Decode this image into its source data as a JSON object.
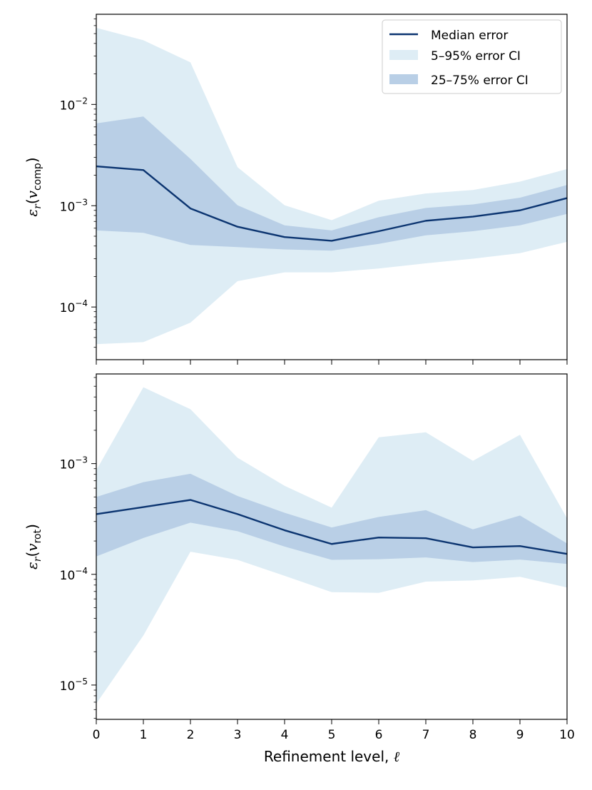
{
  "colors": {
    "median": "#0b3470",
    "ci_outer": "#deedf5",
    "ci_inner": "#b9cfe6"
  },
  "legend": {
    "median_label": "Median error",
    "outer_label": "5–95% error CI",
    "inner_label": "25–75% error CI"
  },
  "chart_data": [
    {
      "type": "area",
      "ylabel": {
        "prefix": "ε",
        "sub1": "r",
        "open": "(",
        "var": "v",
        "sub2": "comp",
        "close": ")"
      },
      "xlabel": "",
      "yscale": "log",
      "xlim": [
        0,
        10
      ],
      "ylim_log10": [
        -4.52,
        -1.11
      ],
      "yticks": [
        {
          "base": "10",
          "exp": "−2",
          "log": -2
        },
        {
          "base": "10",
          "exp": "−3",
          "log": -3
        },
        {
          "base": "10",
          "exp": "−4",
          "log": -4
        }
      ],
      "x": [
        0,
        1,
        2,
        3,
        4,
        5,
        6,
        7,
        8,
        9,
        10
      ],
      "series": [
        {
          "name": "Median error",
          "values": [
            0.00245,
            0.00225,
            0.00094,
            0.00062,
            0.00049,
            0.00045,
            0.00056,
            0.00071,
            0.00078,
            0.0009,
            0.00119
          ]
        },
        {
          "name": "5–95% error CI low",
          "values": [
            4.3e-05,
            4.5e-05,
            7e-05,
            0.00018,
            0.00022,
            0.00022,
            0.00024,
            0.00027,
            0.0003,
            0.00034,
            0.00044
          ]
        },
        {
          "name": "5–95% error CI high",
          "values": [
            0.057,
            0.043,
            0.026,
            0.0024,
            0.00101,
            0.00072,
            0.00112,
            0.00132,
            0.00143,
            0.00173,
            0.0023
          ]
        },
        {
          "name": "25–75% error CI low",
          "values": [
            0.00057,
            0.00054,
            0.00041,
            0.00039,
            0.00037,
            0.00036,
            0.00042,
            0.00051,
            0.00056,
            0.00064,
            0.00083
          ]
        },
        {
          "name": "25–75% error CI high",
          "values": [
            0.0065,
            0.0076,
            0.0029,
            0.00101,
            0.00064,
            0.00057,
            0.00077,
            0.00095,
            0.00103,
            0.0012,
            0.0016
          ]
        }
      ]
    },
    {
      "type": "area",
      "ylabel": {
        "prefix": "ε",
        "sub1": "r",
        "open": "(",
        "var": "v",
        "sub2": "rot",
        "close": ")"
      },
      "xlabel": {
        "text": "Refinement level, ",
        "symbol": "ℓ"
      },
      "yscale": "log",
      "xlim": [
        0,
        10
      ],
      "ylim_log10": [
        -5.31,
        -2.19
      ],
      "yticks": [
        {
          "base": "10",
          "exp": "−3",
          "log": -3
        },
        {
          "base": "10",
          "exp": "−4",
          "log": -4
        },
        {
          "base": "10",
          "exp": "−5",
          "log": -5
        }
      ],
      "xticks": [
        "0",
        "1",
        "2",
        "3",
        "4",
        "5",
        "6",
        "7",
        "8",
        "9",
        "10"
      ],
      "x": [
        0,
        1,
        2,
        3,
        4,
        5,
        6,
        7,
        8,
        9,
        10
      ],
      "series": [
        {
          "name": "Median error",
          "values": [
            0.00035,
            0.000405,
            0.00047,
            0.00035,
            0.00025,
            0.000188,
            0.000215,
            0.000212,
            0.000175,
            0.00018,
            0.000153
          ]
        },
        {
          "name": "5–95% error CI low",
          "values": [
            6.8e-06,
            2.8e-05,
            0.00016,
            0.000135,
            9.7e-05,
            6.9e-05,
            6.8e-05,
            8.6e-05,
            8.8e-05,
            9.5e-05,
            7.6e-05
          ]
        },
        {
          "name": "5–95% error CI high",
          "values": [
            0.00087,
            0.0049,
            0.0031,
            0.00113,
            0.00063,
            0.0004,
            0.00173,
            0.00192,
            0.00106,
            0.00182,
            0.00032
          ]
        },
        {
          "name": "25–75% error CI low",
          "values": [
            0.000145,
            0.000213,
            0.000293,
            0.000245,
            0.000178,
            0.000135,
            0.000137,
            0.000142,
            0.000129,
            0.000136,
            0.000124
          ]
        },
        {
          "name": "25–75% error CI high",
          "values": [
            0.0005,
            0.00068,
            0.00081,
            0.00051,
            0.00036,
            0.000265,
            0.00033,
            0.00038,
            0.000255,
            0.00034,
            0.00019
          ]
        }
      ]
    }
  ]
}
